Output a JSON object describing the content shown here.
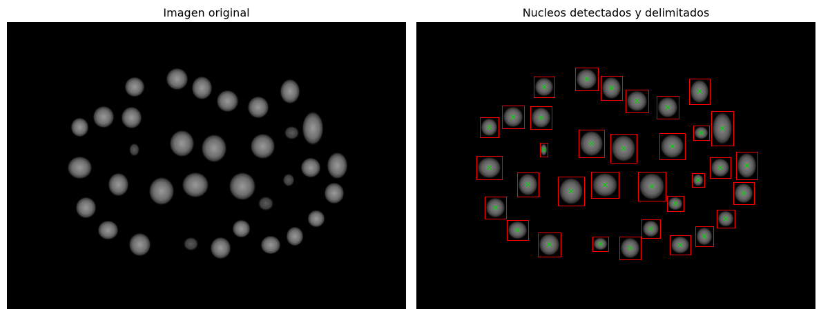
{
  "panels": [
    {
      "title": "Imagen original"
    },
    {
      "title": "Nucleos detectados y delimitados"
    }
  ],
  "colors": {
    "background": "#000000",
    "box": "#ff0000",
    "centroid": "#00cc00",
    "nucleus": "#8a8a8a"
  },
  "detections": 36
}
